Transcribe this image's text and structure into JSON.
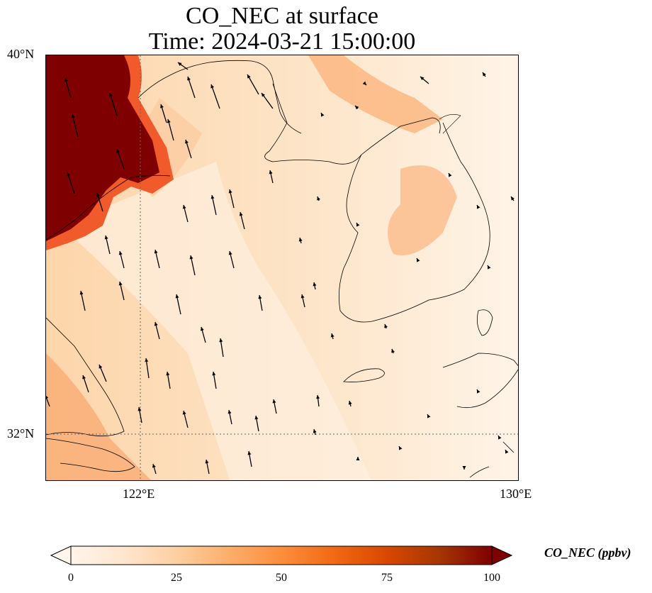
{
  "title": {
    "line1": "CO_NEC at surface",
    "line2": "Time: 2024-03-21 15:00:00"
  },
  "axes": {
    "lat_ticks": [
      {
        "label": "40°N",
        "value": 40
      },
      {
        "label": "32°N",
        "value": 32
      }
    ],
    "lon_ticks": [
      {
        "label": "122°E",
        "value": 122
      },
      {
        "label": "130°E",
        "value": 130
      }
    ],
    "lon_range": [
      120,
      130
    ],
    "lat_range": [
      31,
      40
    ]
  },
  "colorbar": {
    "label": "CO_NEC (ppbv)",
    "ticks": [
      {
        "label": "0",
        "value": 0
      },
      {
        "label": "25",
        "value": 25
      },
      {
        "label": "50",
        "value": 50
      },
      {
        "label": "75",
        "value": 75
      },
      {
        "label": "100",
        "value": 100
      }
    ],
    "range": [
      0,
      100
    ],
    "colors": [
      "#fff5eb",
      "#fee6ce",
      "#fdd0a2",
      "#fdae6b",
      "#fd8d3c",
      "#f16913",
      "#d94801",
      "#a63603",
      "#7f2704"
    ],
    "extend": "both"
  },
  "map_features": {
    "coastlines": true,
    "gridlines": "dotted",
    "wind_vectors": true,
    "high_concentration_region": "northwest (Liaodong/Bohai area)"
  }
}
